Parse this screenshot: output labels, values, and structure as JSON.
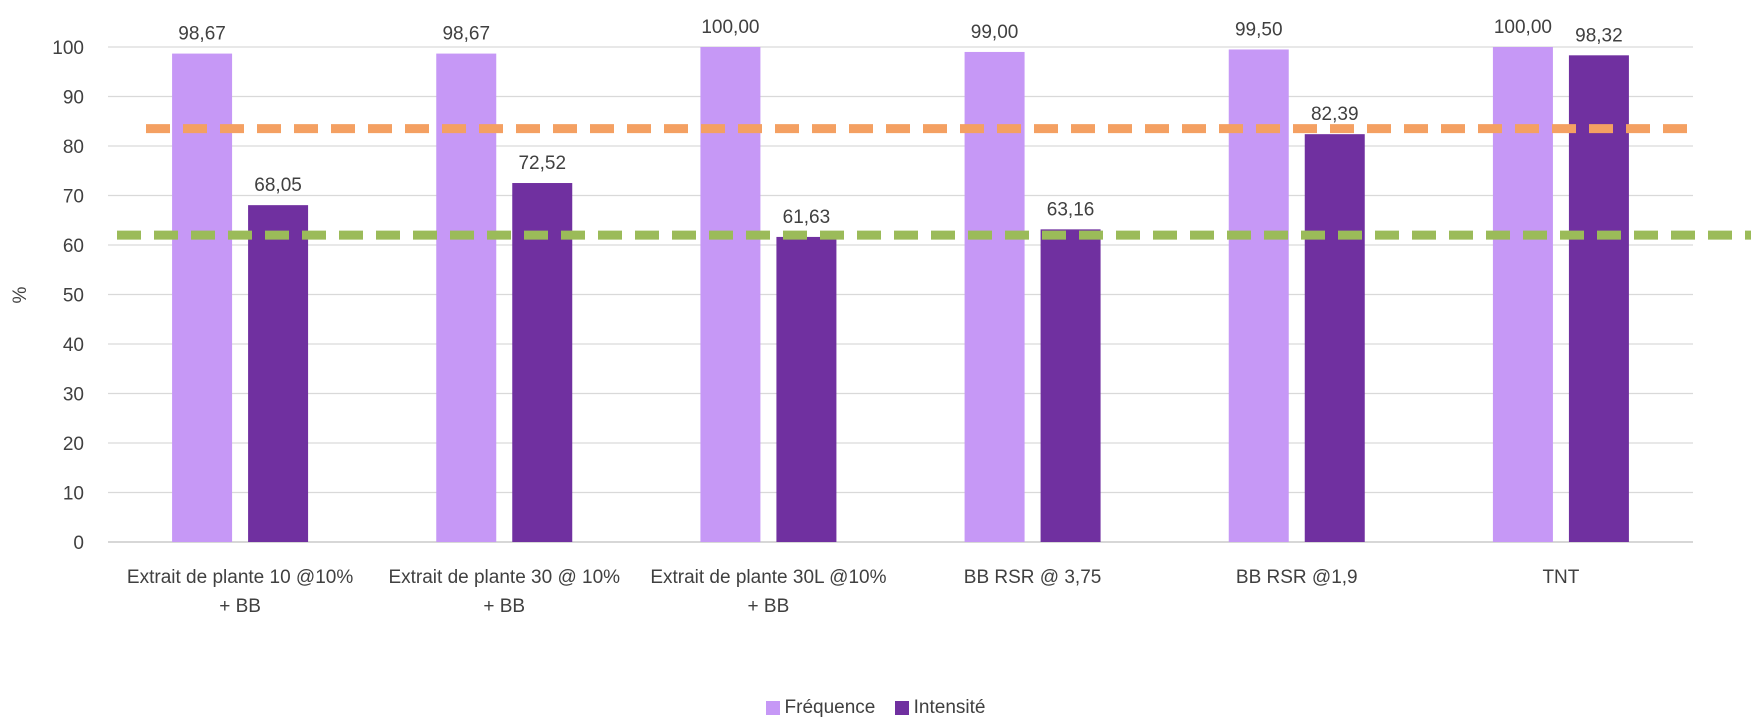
{
  "chart_data": {
    "type": "bar",
    "ylabel": "%",
    "ylim": [
      0,
      100
    ],
    "yticks": [
      0,
      10,
      20,
      30,
      40,
      50,
      60,
      70,
      80,
      90,
      100
    ],
    "grid": true,
    "legend_position": "bottom",
    "categories": [
      [
        "Extrait de plante 10 @10%",
        "+ BB"
      ],
      [
        "Extrait de plante 30 @ 10%",
        "+ BB"
      ],
      [
        "Extrait de plante 30L @10%",
        "+ BB"
      ],
      [
        "BB RSR @ 3,75"
      ],
      [
        "BB RSR @1,9"
      ],
      [
        "TNT"
      ]
    ],
    "series": [
      {
        "name": "Fréquence",
        "color": "#c698f6",
        "values": [
          98.67,
          98.67,
          100.0,
          99.0,
          99.5,
          100.0
        ],
        "data_labels": [
          "98,67",
          "98,67",
          "100,00",
          "99,00",
          "99,50",
          "100,00"
        ]
      },
      {
        "name": "Intensité",
        "color": "#7030a0",
        "values": [
          68.05,
          72.52,
          61.63,
          63.16,
          82.39,
          98.32
        ],
        "data_labels": [
          "68,05",
          "72,52",
          "61,63",
          "63,16",
          "82,39",
          "98,32"
        ]
      }
    ],
    "reference_lines": [
      {
        "value": 83.5,
        "color": "#f4a062",
        "style": "dashed"
      },
      {
        "value": 62,
        "color": "#9bbb59",
        "style": "dashed"
      }
    ]
  }
}
